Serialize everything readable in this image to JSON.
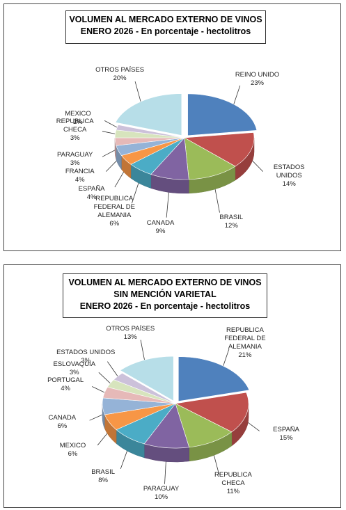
{
  "chart_data": [
    {
      "type": "pie",
      "title": [
        "VOLUMEN AL MERCADO EXTERNO DE VINOS"
      ],
      "subtitle": "ENERO 2026 - En porcentaje - hectolitros",
      "categories": [
        "REINO UNIDO",
        "ESTADOS UNIDOS",
        "BRASIL",
        "CANADA",
        "REPUBLICA FEDERAL DE ALEMANIA",
        "ESPAÑA",
        "FRANCIA",
        "PARAGUAY",
        "REPUBLICA CHECA",
        "MEXICO",
        "OTROS PAÍSES"
      ],
      "values": [
        23,
        14,
        12,
        9,
        6,
        4,
        4,
        3,
        3,
        2,
        20
      ],
      "value_labels": [
        "23%",
        "14%",
        "12%",
        "9%",
        "6%",
        "4%",
        "4%",
        "3%",
        "3%",
        "2%",
        "20%"
      ],
      "colors": [
        "#4f81bd",
        "#c0504d",
        "#9bbb59",
        "#8064a2",
        "#4bacc6",
        "#f79646",
        "#95b3d7",
        "#e6b9b8",
        "#d7e4bd",
        "#ccc1da",
        "#b7dee8"
      ]
    },
    {
      "type": "pie",
      "title": [
        "VOLUMEN AL MERCADO EXTERNO DE VINOS",
        "SIN MENCIÓN VARIETAL"
      ],
      "subtitle": "ENERO 2026 - En porcentaje - hectolitros",
      "categories": [
        "REPUBLICA FEDERAL DE ALEMANIA",
        "ESPAÑA",
        "REPUBLICA CHECA",
        "PARAGUAY",
        "BRASIL",
        "MEXICO",
        "CANADA",
        "PORTUGAL",
        "ESLOVAQUIA",
        "ESTADOS UNIDOS",
        "OTROS PAÍSES"
      ],
      "values": [
        21,
        15,
        11,
        10,
        8,
        6,
        6,
        4,
        3,
        3,
        13
      ],
      "value_labels": [
        "21%",
        "15%",
        "11%",
        "10%",
        "8%",
        "6%",
        "6%",
        "4%",
        "3%",
        "3%",
        "13%"
      ],
      "colors": [
        "#4f81bd",
        "#c0504d",
        "#9bbb59",
        "#8064a2",
        "#4bacc6",
        "#f79646",
        "#95b3d7",
        "#e6b9b8",
        "#d7e4bd",
        "#ccc1da",
        "#b7dee8"
      ]
    }
  ]
}
